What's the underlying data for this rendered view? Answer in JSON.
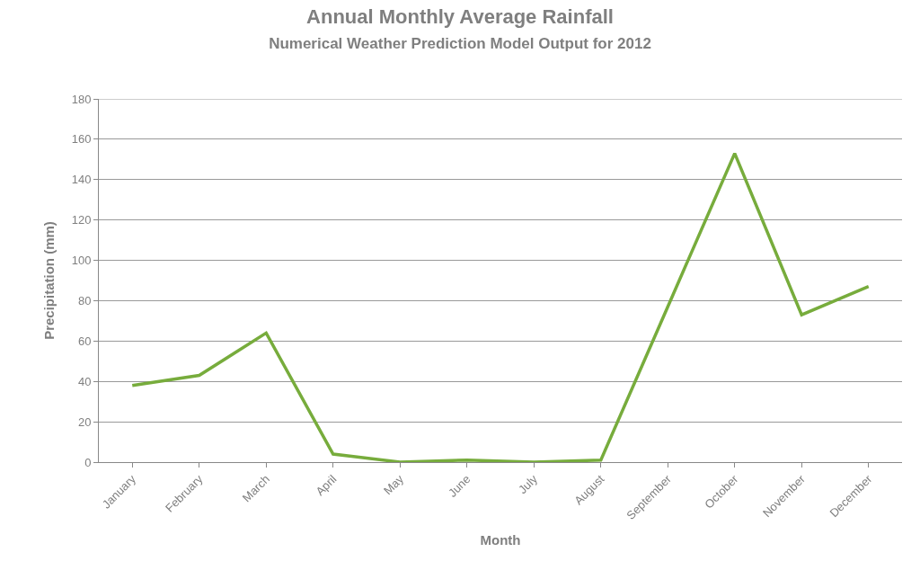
{
  "chart_data": {
    "type": "line",
    "title": "Annual Monthly Average Rainfall",
    "subtitle": "Numerical Weather Prediction Model Output for 2012",
    "xlabel": "Month",
    "ylabel": "Precipitation (mm)",
    "categories": [
      "January",
      "February",
      "March",
      "April",
      "May",
      "June",
      "July",
      "August",
      "September",
      "October",
      "November",
      "December"
    ],
    "series": [
      {
        "color": "#77ac3c",
        "values": [
          38,
          43,
          64,
          4,
          0,
          1,
          0,
          1,
          77,
          153,
          73,
          87
        ]
      }
    ],
    "ylim": [
      0,
      180
    ],
    "yticks": [
      0,
      20,
      40,
      60,
      80,
      100,
      120,
      140,
      160,
      180
    ],
    "grid": "y",
    "marker": "none",
    "line_style": "solid"
  }
}
